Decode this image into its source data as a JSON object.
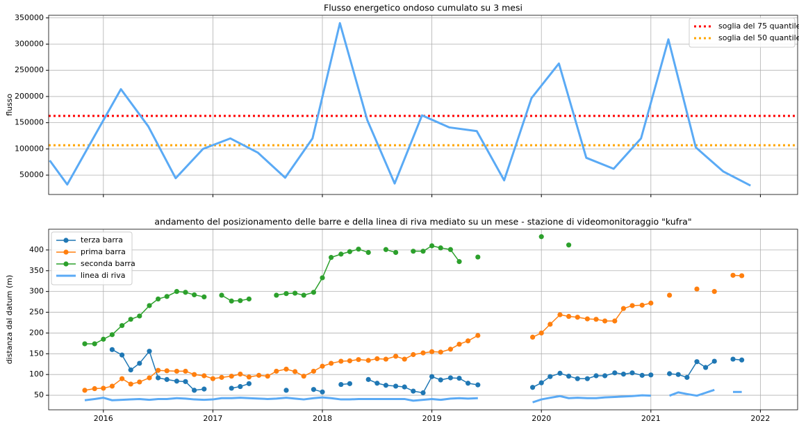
{
  "chart_data": [
    {
      "type": "line",
      "title": "Flusso energetico ondoso cumulato su 3 mesi",
      "ylabel": "flusso",
      "x": [
        2015.51,
        2015.67,
        2015.92,
        2016.16,
        2016.41,
        2016.66,
        2016.91,
        2017.16,
        2017.41,
        2017.66,
        2017.91,
        2018.16,
        2018.41,
        2018.66,
        2018.91,
        2019.16,
        2019.41,
        2019.66,
        2019.91,
        2020.16,
        2020.41,
        2020.66,
        2020.91,
        2021.16,
        2021.41,
        2021.66,
        2021.91
      ],
      "series": [
        {
          "color": "#5aaaf5",
          "marker": false,
          "values": [
            78000,
            32000,
            125000,
            214000,
            143000,
            44000,
            100000,
            120000,
            93000,
            45000,
            120000,
            340000,
            155000,
            34000,
            164000,
            141000,
            134000,
            40000,
            197000,
            263000,
            83000,
            62000,
            120000,
            309000,
            103000,
            57000,
            30000
          ]
        }
      ],
      "hlines": [
        {
          "name": "soglia del 75 quantile",
          "color": "#ff0000",
          "value": 163000
        },
        {
          "name": "soglia del 50 quantile",
          "color": "#ffa500",
          "value": 107000
        }
      ],
      "xlim": [
        2015.5,
        2022.34
      ],
      "xticks": [
        2016,
        2017,
        2018,
        2019,
        2020,
        2021,
        2022
      ],
      "xtick_labels": false,
      "ylim": [
        13000,
        355000
      ],
      "yticks": [
        50000,
        100000,
        150000,
        200000,
        250000,
        300000,
        350000
      ],
      "grid": true,
      "legend": "upper right"
    },
    {
      "type": "line",
      "title": "andamento del posizionamento delle barre e della linea di riva mediato su un mese - stazione di videomonitoraggio \"kufra\"",
      "ylabel": "distanza dal datum (m)",
      "x": [
        2015.83,
        2015.92,
        2016,
        2016.08,
        2016.17,
        2016.25,
        2016.33,
        2016.42,
        2016.5,
        2016.58,
        2016.67,
        2016.75,
        2016.83,
        2016.92,
        2017,
        2017.08,
        2017.17,
        2017.25,
        2017.33,
        2017.42,
        2017.5,
        2017.58,
        2017.67,
        2017.75,
        2017.83,
        2017.92,
        2018,
        2018.08,
        2018.17,
        2018.25,
        2018.33,
        2018.42,
        2018.5,
        2018.58,
        2018.67,
        2018.75,
        2018.83,
        2018.92,
        2019,
        2019.08,
        2019.17,
        2019.25,
        2019.33,
        2019.42,
        2019.5,
        2019.58,
        2019.67,
        2019.75,
        2019.83,
        2019.92,
        2020,
        2020.08,
        2020.17,
        2020.25,
        2020.33,
        2020.42,
        2020.5,
        2020.58,
        2020.67,
        2020.75,
        2020.83,
        2020.92,
        2021,
        2021.08,
        2021.17,
        2021.25,
        2021.33,
        2021.42,
        2021.5,
        2021.58,
        2021.67,
        2021.75,
        2021.83
      ],
      "series": [
        {
          "name": "terza barra",
          "color": "#1f77b4",
          "marker": true,
          "values": [
            null,
            null,
            null,
            160,
            147,
            111,
            127,
            156,
            92,
            88,
            84,
            83,
            62,
            65,
            null,
            null,
            67,
            71,
            78,
            null,
            null,
            null,
            62,
            null,
            null,
            64,
            58,
            null,
            76,
            78,
            null,
            88,
            79,
            74,
            72,
            70,
            60,
            56,
            95,
            87,
            92,
            91,
            79,
            75,
            null,
            null,
            null,
            null,
            null,
            69,
            80,
            95,
            103,
            96,
            90,
            90,
            97,
            97,
            104,
            101,
            104,
            98,
            99,
            null,
            102,
            100,
            93,
            131,
            117,
            132,
            null,
            137,
            135
          ]
        },
        {
          "name": "prima barra",
          "color": "#ff7f0e",
          "marker": true,
          "values": [
            62,
            66,
            67,
            72,
            90,
            77,
            82,
            92,
            110,
            109,
            108,
            108,
            100,
            97,
            90,
            93,
            96,
            101,
            94,
            98,
            96,
            108,
            113,
            107,
            96,
            108,
            120,
            127,
            132,
            133,
            136,
            134,
            138,
            137,
            144,
            137,
            148,
            152,
            155,
            154,
            161,
            173,
            181,
            194,
            null,
            null,
            null,
            null,
            null,
            190,
            200,
            221,
            244,
            240,
            238,
            234,
            233,
            229,
            229,
            259,
            266,
            267,
            272,
            null,
            291,
            null,
            null,
            306,
            null,
            300,
            null,
            339,
            338
          ]
        },
        {
          "name": "seconda barra",
          "color": "#2ca02c",
          "marker": true,
          "values": [
            174,
            174,
            185,
            196,
            218,
            233,
            241,
            266,
            282,
            288,
            300,
            298,
            292,
            287,
            null,
            291,
            277,
            278,
            282,
            null,
            null,
            291,
            295,
            296,
            291,
            298,
            333,
            382,
            390,
            396,
            402,
            394,
            null,
            401,
            394,
            null,
            397,
            397,
            410,
            405,
            401,
            372,
            null,
            383,
            null,
            null,
            null,
            null,
            null,
            null,
            432,
            null,
            null,
            412,
            null,
            null,
            null,
            null,
            null,
            null,
            null,
            null,
            null,
            null,
            null,
            null,
            null,
            null,
            null,
            null,
            null,
            null,
            null
          ]
        },
        {
          "name": "linea di riva",
          "color": "#5aaaf5",
          "marker": false,
          "values": [
            38,
            41,
            44,
            38,
            39,
            40,
            41,
            39,
            41,
            41,
            43,
            42,
            40,
            39,
            40,
            43,
            43,
            44,
            43,
            42,
            41,
            42,
            44,
            42,
            40,
            43,
            45,
            43,
            40,
            40,
            41,
            41,
            41,
            41,
            41,
            41,
            37,
            39,
            41,
            39,
            42,
            43,
            42,
            43,
            null,
            null,
            null,
            null,
            null,
            33,
            40,
            44,
            48,
            43,
            44,
            43,
            43,
            45,
            46,
            47,
            48,
            50,
            49,
            null,
            49,
            57,
            53,
            49,
            56,
            63,
            null,
            58,
            58
          ]
        }
      ],
      "xlim": [
        2015.5,
        2022.34
      ],
      "xticks": [
        2016,
        2017,
        2018,
        2019,
        2020,
        2021,
        2022
      ],
      "xtick_labels": true,
      "ylim": [
        15,
        450
      ],
      "yticks": [
        50,
        100,
        150,
        200,
        250,
        300,
        350,
        400
      ],
      "grid": true,
      "legend": "upper left"
    }
  ]
}
